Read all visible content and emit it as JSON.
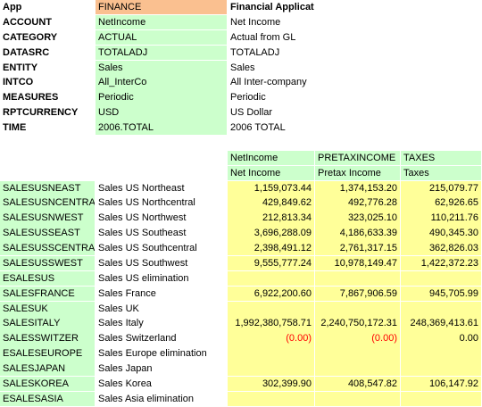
{
  "header": {
    "rows": [
      [
        "App",
        "FINANCE",
        "Financial Application"
      ],
      [
        "ACCOUNT",
        "NetIncome",
        "Net Income"
      ],
      [
        "CATEGORY",
        "ACTUAL",
        "Actual from GL"
      ],
      [
        "DATASRC",
        "TOTALADJ",
        "TOTALADJ"
      ],
      [
        "ENTITY",
        "Sales",
        "Sales"
      ],
      [
        "INTCO",
        "All_InterCo",
        "All Inter-company"
      ],
      [
        "MEASURES",
        "Periodic",
        "Periodic"
      ],
      [
        "RPTCURRENCY",
        "USD",
        "US Dollar"
      ],
      [
        "TIME",
        "2006.TOTAL",
        "2006 TOTAL"
      ]
    ]
  },
  "table": {
    "columns": [
      [
        "NetIncome",
        "Net Income"
      ],
      [
        "PRETAXINCOME",
        "Pretax Income"
      ],
      [
        "TAXES",
        "Taxes"
      ]
    ],
    "rows": [
      [
        "SALESUSNEAST",
        "Sales US Northeast",
        "1,159,073.44",
        "1,374,153.20",
        "215,079.77"
      ],
      [
        "SALESUSNCENTRAL",
        "Sales US Northcentral",
        "429,849.62",
        "492,776.28",
        "62,926.65"
      ],
      [
        "SALESUSNWEST",
        "Sales US Northwest",
        "212,813.34",
        "323,025.10",
        "110,211.76"
      ],
      [
        "SALESUSSEAST",
        "Sales US Southeast",
        "3,696,288.09",
        "4,186,633.39",
        "490,345.30"
      ],
      [
        "SALESUSSCENTRAL",
        "Sales US Southcentral",
        "2,398,491.12",
        "2,761,317.15",
        "362,826.03"
      ],
      [
        "SALESUSSWEST",
        "Sales US Southwest",
        "9,555,777.24",
        "10,978,149.47",
        "1,422,372.23"
      ],
      [
        "ESALESUS",
        "Sales US elimination",
        null,
        null,
        null
      ],
      [
        "SALESFRANCE",
        "Sales France",
        "6,922,200.60",
        "7,867,906.59",
        "945,705.99"
      ],
      [
        "SALESUK",
        "Sales UK",
        null,
        null,
        null
      ],
      [
        "SALESITALY",
        "Sales Italy",
        "1,992,380,758.71",
        "2,240,750,172.31",
        "248,369,413.61"
      ],
      [
        "SALESSWITZER",
        "Sales Switzerland",
        "(0.00)",
        "(0.00)",
        "0.00"
      ],
      [
        "ESALESEUROPE",
        "Sales Europe elimination",
        null,
        null,
        null
      ],
      [
        "SALESJAPAN",
        "Sales Japan",
        null,
        null,
        null
      ],
      [
        "SALESKOREA",
        "Sales Korea",
        "302,399.90",
        "408,547.82",
        "106,147.92"
      ],
      [
        "ESALESASIA",
        "Sales Asia elimination",
        null,
        null,
        null
      ]
    ]
  }
}
